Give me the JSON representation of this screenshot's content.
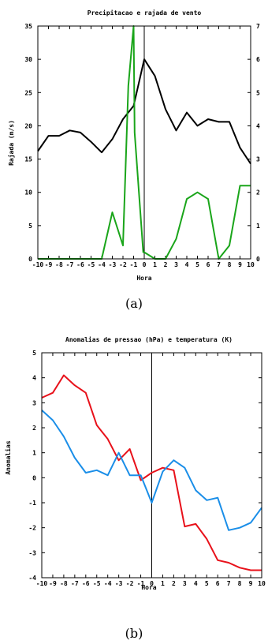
{
  "chart_data": [
    {
      "type": "line",
      "title": "Precipitacao e rajada de vento",
      "xlabel": "Hora",
      "ylabel": "Rajada (m/s)",
      "y2label": "",
      "caption": "(a)",
      "x": [
        -10,
        -9,
        -8,
        -7,
        -6,
        -5,
        -4,
        -3,
        -2,
        -1,
        0,
        1,
        2,
        3,
        4,
        5,
        6,
        7,
        8,
        9,
        10
      ],
      "x_ticks": [
        "-10",
        "-9",
        "-8",
        "-7",
        "-6",
        "-5",
        "-4",
        "-3",
        "-2",
        "-1",
        "0",
        "1",
        "2",
        "3",
        "4",
        "5",
        "6",
        "7",
        "8",
        "9",
        "10"
      ],
      "ylim": [
        0,
        35
      ],
      "y_ticks": [
        "0",
        "5",
        "10",
        "15",
        "20",
        "25",
        "30",
        "35"
      ],
      "y2lim": [
        0,
        7
      ],
      "y2_ticks": [
        "0",
        "1",
        "2",
        "3",
        "4",
        "5",
        "6",
        "7"
      ],
      "vline_x": 0,
      "series": [
        {
          "axis": "left",
          "color": "#000000",
          "x": [
            -10,
            -9,
            -8,
            -7,
            -6,
            -5,
            -4,
            -3,
            -2,
            -1,
            0,
            1,
            2,
            3,
            4,
            5,
            6,
            7,
            8,
            9,
            10
          ],
          "values": [
            16.2,
            18.5,
            18.5,
            19.3,
            19.0,
            17.6,
            16.0,
            18.0,
            21.0,
            23.0,
            30.0,
            27.5,
            22.5,
            19.3,
            22.0,
            20.0,
            21.0,
            20.6,
            20.6,
            16.7,
            14.3
          ]
        },
        {
          "axis": "right",
          "color": "#1aa51a",
          "x": [
            -10,
            -9,
            -8,
            -7,
            -6,
            -5,
            -4,
            -3,
            -2,
            -1.5,
            -1,
            -0.9,
            -0.1,
            0,
            1,
            2,
            3,
            4,
            5,
            6,
            7,
            8,
            9,
            10
          ],
          "values": [
            0,
            0,
            0,
            0,
            0,
            0,
            0,
            1.4,
            0.4,
            5.2,
            7.0,
            3.8,
            0.2,
            0.2,
            0,
            0,
            0.6,
            1.8,
            2.0,
            1.8,
            0,
            0.4,
            2.2,
            2.2
          ]
        }
      ]
    },
    {
      "type": "line",
      "title": "Anomalias de pressao (hPa) e temperatura (K)",
      "xlabel": "Hora",
      "ylabel": "Anomalias",
      "caption": "(b)",
      "x_ticks": [
        "-10",
        "-9",
        "-8",
        "-7",
        "-6",
        "-5",
        "-4",
        "-3",
        "-2",
        "-1",
        "0",
        "1",
        "2",
        "3",
        "4",
        "5",
        "6",
        "7",
        "8",
        "9",
        "10"
      ],
      "ylim": [
        -4,
        5
      ],
      "y_ticks": [
        "-4",
        "-3",
        "-2",
        "-1",
        "0",
        "1",
        "2",
        "3",
        "4",
        "5"
      ],
      "vline_x": 0,
      "series": [
        {
          "color": "#e8111a",
          "x": [
            -10,
            -9,
            -8,
            -7,
            -6,
            -5,
            -4,
            -3,
            -2,
            -1,
            0,
            1,
            2,
            3,
            4,
            5,
            6,
            7,
            8,
            9,
            10
          ],
          "values": [
            3.2,
            3.4,
            4.1,
            3.7,
            3.4,
            2.1,
            1.55,
            0.7,
            1.15,
            -0.1,
            0.2,
            0.4,
            0.3,
            -1.95,
            -1.85,
            -2.45,
            -3.3,
            -3.4,
            -3.6,
            -3.7,
            -3.7
          ]
        },
        {
          "color": "#1a8ee8",
          "x": [
            -10,
            -9,
            -8,
            -7,
            -6,
            -5,
            -4,
            -3,
            -2,
            -1,
            0,
            1,
            2,
            3,
            4,
            5,
            6,
            7,
            8,
            9,
            10
          ],
          "values": [
            2.7,
            2.3,
            1.65,
            0.8,
            0.2,
            0.3,
            0.1,
            1.0,
            0.1,
            0.1,
            -1.0,
            0.25,
            0.7,
            0.4,
            -0.5,
            -0.9,
            -0.8,
            -2.1,
            -2.0,
            -1.8,
            -1.2
          ]
        }
      ]
    }
  ]
}
